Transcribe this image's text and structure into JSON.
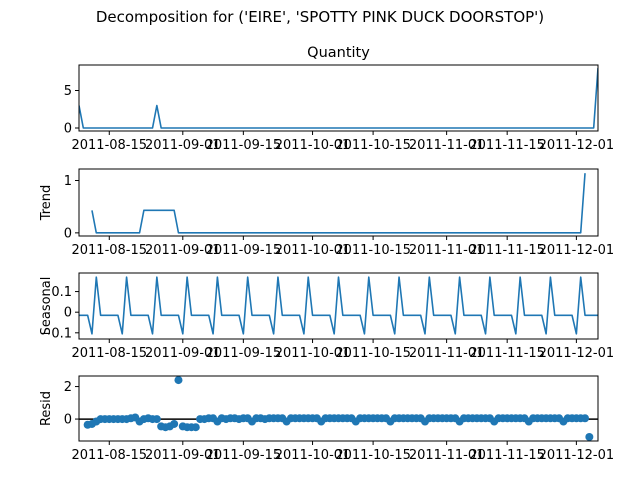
{
  "figure": {
    "suptitle": "Decomposition for ('EIRE', 'SPOTTY PINK DUCK DOORSTOP')",
    "x_tick_labels": [
      "2011-08-15",
      "2011-09-01",
      "2011-09-15",
      "2011-10-01",
      "2011-10-15",
      "2011-11-01",
      "2011-11-15",
      "2011-12-01"
    ],
    "line_color": "#1f77b4",
    "frame_color": "#000000"
  },
  "chart_data": [
    {
      "type": "line",
      "title": "Quantity",
      "ylabel": "",
      "xlim": [
        "2011-08-08",
        "2011-12-06"
      ],
      "ylim": [
        -0.4,
        8.4
      ],
      "yticks": [
        0,
        5
      ],
      "series": [
        {
          "x": [
            "2011-08-08",
            "2011-08-09",
            "2011-08-25",
            "2011-08-26",
            "2011-08-27",
            "2011-12-05",
            "2011-12-06"
          ],
          "y": [
            3,
            0,
            0,
            3,
            0,
            0,
            8
          ]
        }
      ]
    },
    {
      "type": "line",
      "title": "",
      "ylabel": "Trend",
      "xlim": [
        "2011-08-08",
        "2011-12-06"
      ],
      "ylim": [
        -0.06,
        1.22
      ],
      "yticks": [
        0,
        1
      ],
      "series": [
        {
          "x": [
            "2011-08-11",
            "2011-08-12",
            "2011-08-22",
            "2011-08-23",
            "2011-08-30",
            "2011-08-31",
            "2011-12-02",
            "2011-12-03"
          ],
          "y": [
            0.43,
            0,
            0,
            0.43,
            0.43,
            0,
            0,
            1.14
          ]
        }
      ]
    },
    {
      "type": "line",
      "title": "",
      "ylabel": "Seasonal",
      "xlim": [
        "2011-08-08",
        "2011-12-06"
      ],
      "ylim": [
        -0.13,
        0.19
      ],
      "yticks": [
        -0.1,
        0.0,
        0.1
      ],
      "series": [
        {
          "period_days": 7,
          "x_start": "2011-08-08",
          "weekly_pattern": [
            -0.015,
            -0.015,
            -0.015,
            -0.015,
            -0.015,
            -0.015,
            -0.015,
            -0.015,
            -0.015,
            -0.015,
            -0.015,
            -0.105,
            0.17
          ],
          "y_pattern": [
            -0.015,
            -0.015,
            -0.015,
            -0.105,
            0.17,
            -0.015,
            -0.015
          ]
        }
      ]
    },
    {
      "type": "scatter",
      "title": "",
      "ylabel": "Resid",
      "xlim": [
        "2011-08-08",
        "2011-12-06"
      ],
      "ylim": [
        -1.35,
        2.65
      ],
      "yticks": [
        0,
        2
      ],
      "zero_line": true,
      "series": [
        {
          "x_start": "2011-08-10",
          "x_end": "2011-12-04",
          "y": [
            -0.35,
            -0.3,
            -0.15,
            0.0,
            0.0,
            0.0,
            0.0,
            0.0,
            0.0,
            0.0,
            0.05,
            0.1,
            -0.15,
            0.0,
            0.05,
            0.0,
            0.0,
            -0.45,
            -0.5,
            -0.45,
            -0.3,
            2.4,
            -0.45,
            -0.5,
            -0.5,
            -0.5,
            0.0,
            0.0,
            0.05,
            0.05,
            -0.15,
            0.05,
            0.0,
            0.05,
            0.05,
            0.0,
            0.05,
            0.05,
            -0.15,
            0.05,
            0.05,
            0.0,
            0.05,
            0.05,
            0.05,
            0.05,
            -0.15,
            0.05,
            0.05,
            0.05,
            0.05,
            0.05,
            0.05,
            0.05,
            -0.15,
            0.05,
            0.05,
            0.05,
            0.05,
            0.05,
            0.05,
            0.05,
            -0.15,
            0.05,
            0.05,
            0.05,
            0.05,
            0.05,
            0.05,
            0.05,
            -0.15,
            0.05,
            0.05,
            0.05,
            0.05,
            0.05,
            0.05,
            0.05,
            -0.15,
            0.05,
            0.05,
            0.05,
            0.05,
            0.05,
            0.05,
            0.05,
            -0.15,
            0.05,
            0.05,
            0.05,
            0.05,
            0.05,
            0.05,
            0.05,
            -0.15,
            0.05,
            0.05,
            0.05,
            0.05,
            0.05,
            0.05,
            0.05,
            -0.15,
            0.05,
            0.05,
            0.05,
            0.05,
            0.05,
            0.05,
            0.05,
            -0.15,
            0.05,
            0.05,
            0.05,
            0.05,
            0.05,
            -1.1
          ]
        }
      ]
    }
  ]
}
